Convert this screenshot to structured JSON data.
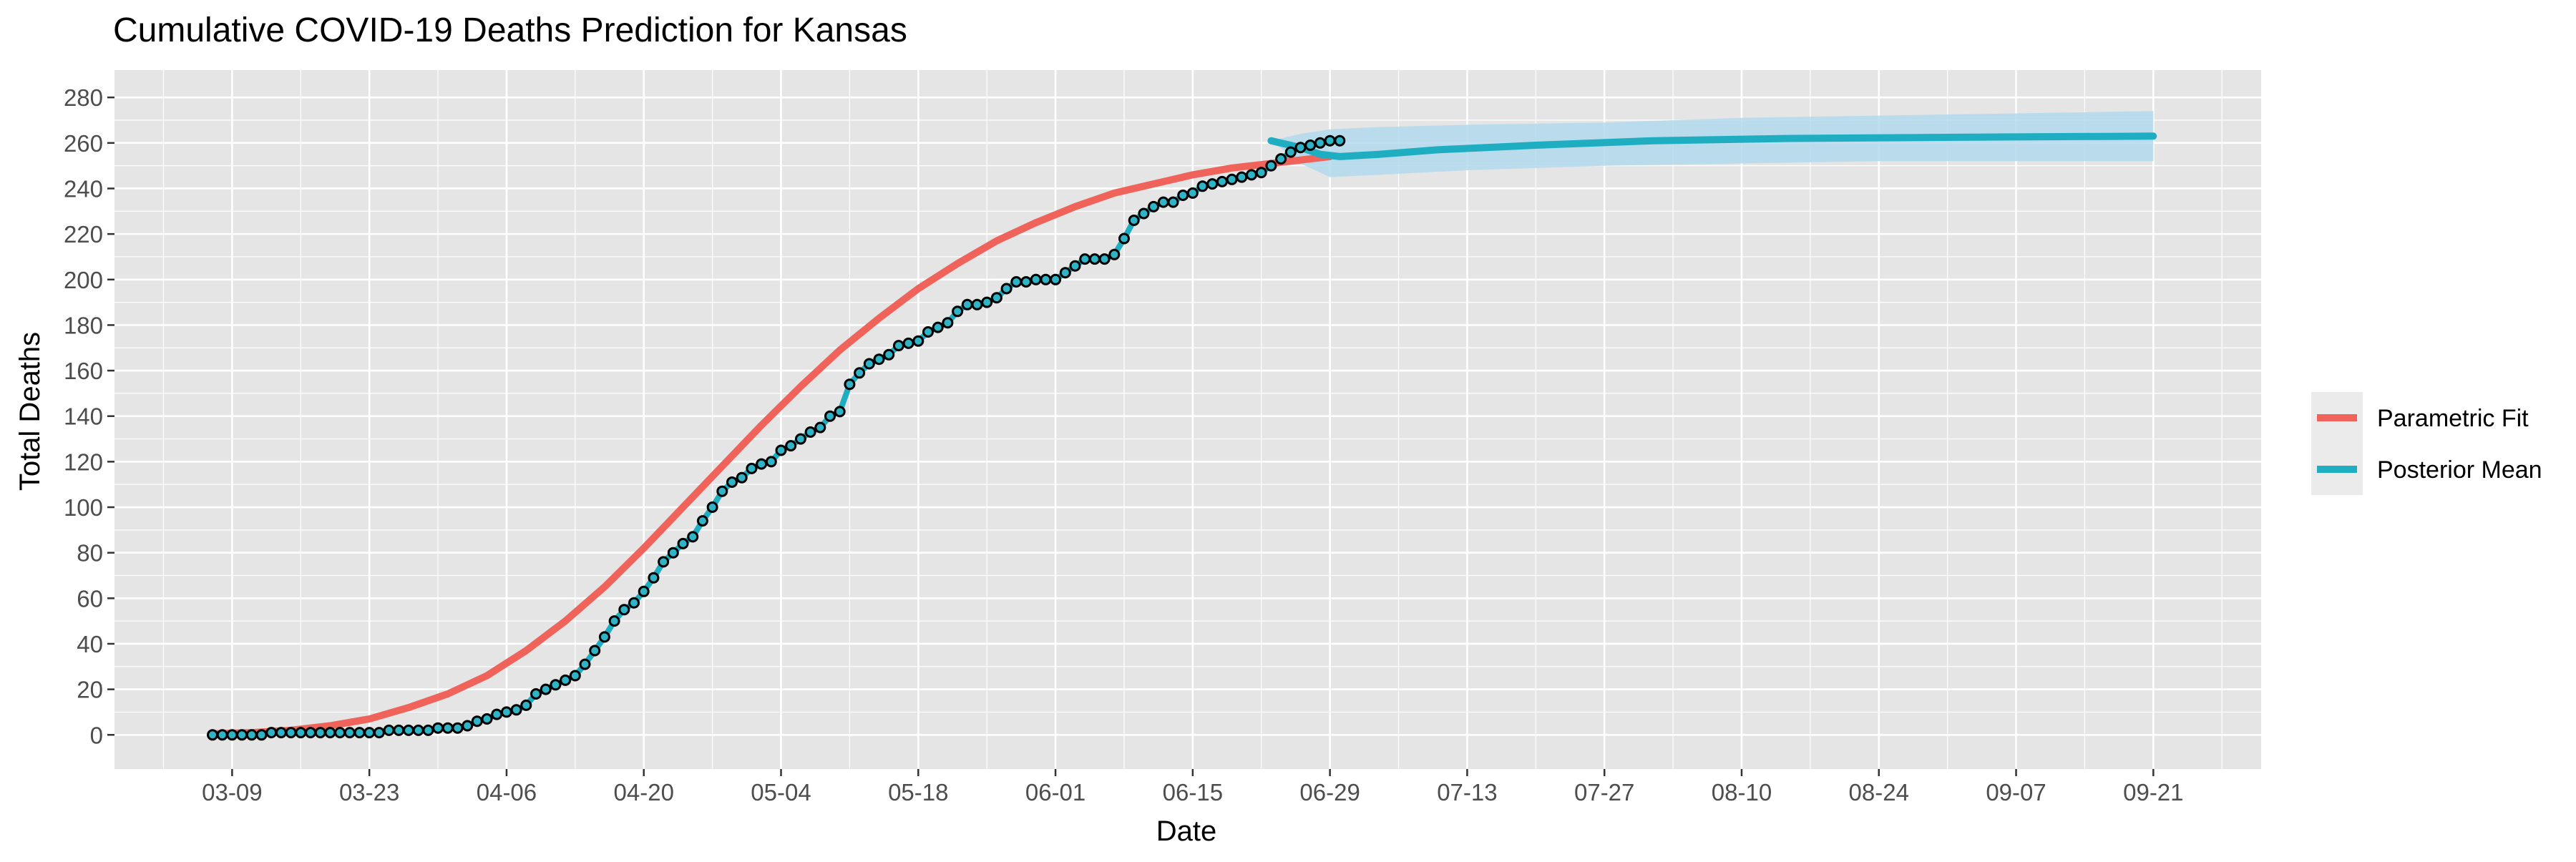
{
  "chart_data": {
    "type": "line",
    "title": "Cumulative COVID-19 Deaths Prediction for Kansas",
    "xlabel": "Date",
    "ylabel": "Total Deaths",
    "x_ticks": [
      "03-09",
      "03-23",
      "04-06",
      "04-20",
      "05-04",
      "05-18",
      "06-01",
      "06-15",
      "06-29",
      "07-13",
      "07-27",
      "08-10",
      "08-24",
      "09-07",
      "09-21"
    ],
    "x_tick_dates": [
      "2020-03-09",
      "2020-03-23",
      "2020-04-06",
      "2020-04-20",
      "2020-05-04",
      "2020-05-18",
      "2020-06-01",
      "2020-06-15",
      "2020-06-29",
      "2020-07-13",
      "2020-07-27",
      "2020-08-10",
      "2020-08-24",
      "2020-09-07",
      "2020-09-21"
    ],
    "xlim": [
      "2020-02-26",
      "2020-10-02"
    ],
    "ylim": [
      -15,
      292
    ],
    "y_ticks": [
      0,
      20,
      40,
      60,
      80,
      100,
      120,
      140,
      160,
      180,
      200,
      220,
      240,
      260,
      280
    ],
    "grid": true,
    "legend_position": "right",
    "colors": {
      "panel_background": "#e5e5e5",
      "grid": "#ffffff",
      "parametric_fit": "#f0635a",
      "posterior_mean": "#1fadc2",
      "credible_band": "#b3d9ec",
      "observed_point_fill": "#2fb3c6",
      "observed_point_edge": "#000000",
      "legend_key_background": "#ebebeb"
    },
    "legend": [
      {
        "label": "Parametric Fit",
        "color": "#f0635a"
      },
      {
        "label": "Posterior Mean",
        "color": "#1fadc2"
      }
    ],
    "observed": {
      "start_date": "2020-03-07",
      "values": [
        0,
        0,
        0,
        0,
        0,
        0,
        1,
        1,
        1,
        1,
        1,
        1,
        1,
        1,
        1,
        1,
        1,
        1,
        2,
        2,
        2,
        2,
        2,
        3,
        3,
        3,
        4,
        6,
        7,
        9,
        10,
        11,
        13,
        18,
        20,
        22,
        24,
        26,
        31,
        37,
        43,
        50,
        55,
        58,
        63,
        69,
        76,
        80,
        84,
        87,
        94,
        100,
        107,
        111,
        113,
        117,
        119,
        120,
        125,
        127,
        130,
        133,
        135,
        140,
        142,
        154,
        159,
        163,
        165,
        167,
        171,
        172,
        173,
        177,
        179,
        181,
        186,
        189,
        189,
        190,
        192,
        196,
        199,
        199,
        200,
        200,
        200,
        203,
        206,
        209,
        209,
        209,
        211,
        218,
        226,
        229,
        232,
        234,
        234,
        237,
        238,
        241,
        242,
        243,
        244,
        245,
        246,
        247,
        250,
        253,
        256,
        258,
        259,
        260,
        261,
        261
      ]
    },
    "series": [
      {
        "name": "Parametric Fit",
        "x": [
          "2020-03-07",
          "2020-03-11",
          "2020-03-15",
          "2020-03-19",
          "2020-03-23",
          "2020-03-27",
          "2020-03-31",
          "2020-04-04",
          "2020-04-08",
          "2020-04-12",
          "2020-04-16",
          "2020-04-20",
          "2020-04-24",
          "2020-04-28",
          "2020-05-02",
          "2020-05-06",
          "2020-05-10",
          "2020-05-14",
          "2020-05-18",
          "2020-05-22",
          "2020-05-26",
          "2020-05-30",
          "2020-06-03",
          "2020-06-07",
          "2020-06-11",
          "2020-06-15",
          "2020-06-19",
          "2020-06-23",
          "2020-06-27",
          "2020-06-29"
        ],
        "values": [
          0.5,
          1,
          2,
          4,
          7,
          12,
          18,
          26,
          37,
          50,
          65,
          82,
          100,
          118,
          136,
          153,
          169,
          183,
          196,
          207,
          217,
          225,
          232,
          238,
          242,
          246,
          249,
          251,
          253,
          254
        ]
      },
      {
        "name": "Posterior Mean",
        "x": [
          "2020-06-23",
          "2020-06-26",
          "2020-06-28",
          "2020-06-30",
          "2020-07-04",
          "2020-07-10",
          "2020-07-20",
          "2020-08-01",
          "2020-08-15",
          "2020-09-01",
          "2020-09-21"
        ],
        "values": [
          261,
          258,
          255,
          254,
          255,
          257,
          259,
          261,
          262,
          262.5,
          263
        ]
      }
    ],
    "credible_band": {
      "x": [
        "2020-06-23",
        "2020-06-26",
        "2020-06-29",
        "2020-07-04",
        "2020-07-13",
        "2020-07-27",
        "2020-08-10",
        "2020-08-24",
        "2020-09-07",
        "2020-09-21"
      ],
      "lower": [
        261,
        251,
        245,
        246,
        248,
        250,
        251,
        252,
        252,
        252
      ],
      "upper": [
        261,
        264,
        266,
        267,
        268,
        269,
        271,
        272,
        273,
        274
      ]
    }
  }
}
